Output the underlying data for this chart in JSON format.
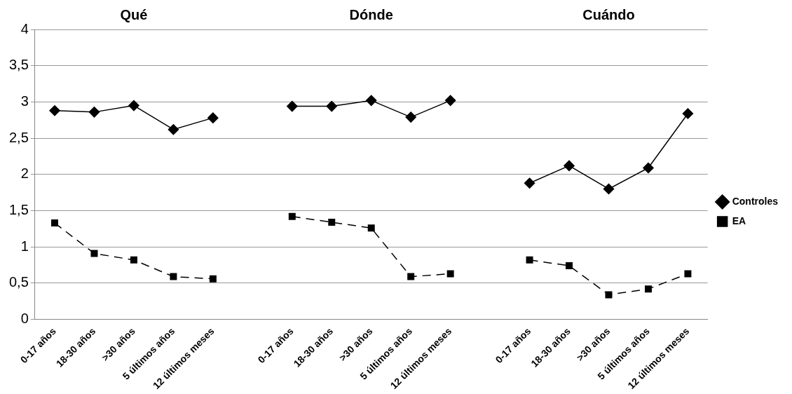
{
  "chart_data": {
    "type": "line",
    "annotations": [
      "Qué",
      "Dónde",
      "Cuándo"
    ],
    "categories": [
      "0-17 años",
      "18-30 años",
      ">30 años",
      "5 últimos años",
      "12 últimos meses",
      null,
      "0-17 años",
      "18-30 años",
      ">30 años",
      "5 últimos años",
      "12 últimos meses",
      null,
      "0-17 años",
      "18-30 años",
      ">30 años",
      "5 últimos años",
      "12 últimos meses"
    ],
    "series": [
      {
        "name": "Controles",
        "color": "#000000",
        "marker": "diamond",
        "line_style": "solid",
        "values": [
          2.88,
          2.86,
          2.95,
          2.62,
          2.78,
          null,
          2.94,
          2.94,
          3.02,
          2.79,
          3.02,
          null,
          1.88,
          2.12,
          1.8,
          2.09,
          2.84
        ]
      },
      {
        "name": "EA",
        "color": "#000000",
        "marker": "square",
        "line_style": "dashed",
        "values": [
          1.33,
          0.91,
          0.82,
          0.59,
          0.56,
          null,
          1.42,
          1.34,
          1.26,
          0.59,
          0.63,
          null,
          0.82,
          0.74,
          0.34,
          0.42,
          0.63
        ]
      }
    ],
    "ylim": [
      0,
      4
    ],
    "yticks": [
      {
        "value": 0,
        "label": "0"
      },
      {
        "value": 0.5,
        "label": "0,5"
      },
      {
        "value": 1,
        "label": "1"
      },
      {
        "value": 1.5,
        "label": "1,5"
      },
      {
        "value": 2,
        "label": "2"
      },
      {
        "value": 2.5,
        "label": "2,5"
      },
      {
        "value": 3,
        "label": "3"
      },
      {
        "value": 3.5,
        "label": "3,5"
      },
      {
        "value": 4,
        "label": "4"
      }
    ],
    "grid": "y",
    "legend": "right"
  }
}
